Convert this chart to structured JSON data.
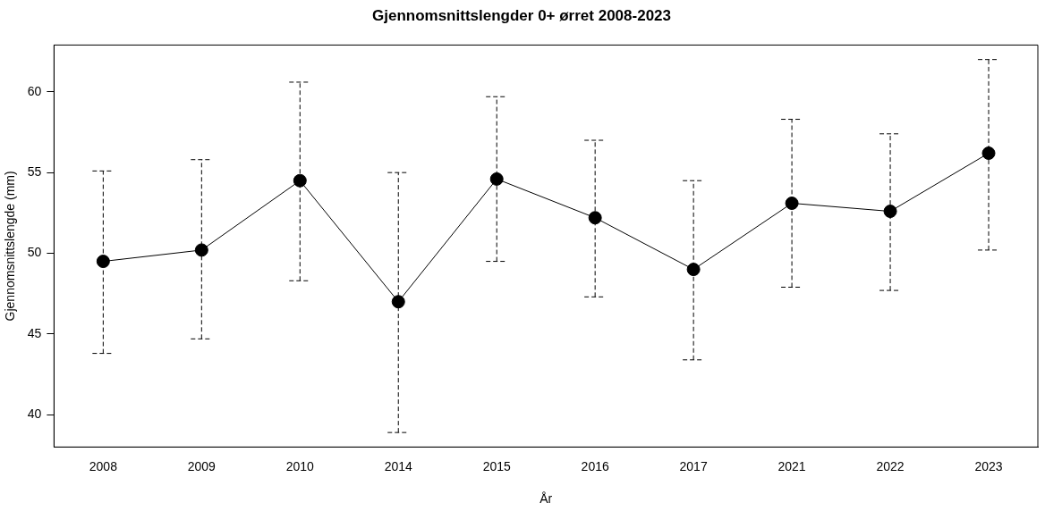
{
  "chart_data": {
    "type": "line",
    "title": "Gjennomsnittslengder 0+ ørret 2008-2023",
    "xlabel": "År",
    "ylabel": "Gjennomsnittslengde (mm)",
    "categories": [
      "2008",
      "2009",
      "2010",
      "2014",
      "2015",
      "2016",
      "2017",
      "2021",
      "2022",
      "2023"
    ],
    "series": [
      {
        "color": "#000000",
        "values": [
          49.5,
          50.2,
          54.5,
          47.0,
          54.6,
          52.2,
          49.0,
          53.1,
          52.6,
          56.2
        ],
        "errors": [
          [
            43.8,
            55.1
          ],
          [
            44.7,
            55.8
          ],
          [
            48.3,
            60.6
          ],
          [
            38.9,
            55.0
          ],
          [
            49.5,
            59.7
          ],
          [
            47.3,
            57.0
          ],
          [
            43.4,
            54.5
          ],
          [
            47.9,
            58.3
          ],
          [
            47.7,
            57.4
          ],
          [
            50.2,
            62.0
          ]
        ]
      }
    ],
    "ylim": [
      38,
      62.9
    ],
    "yticks": [
      40,
      45,
      50,
      55,
      60
    ],
    "grid": false,
    "legend": false,
    "marker": "circle",
    "line_style": "solid"
  }
}
